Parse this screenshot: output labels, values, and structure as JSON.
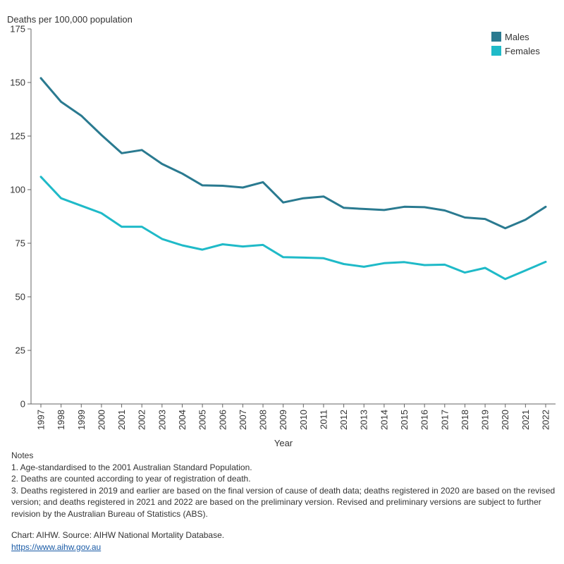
{
  "chart_data": {
    "type": "line",
    "ylabel": "Deaths per 100,000 population",
    "xlabel": "Year",
    "ylim": [
      0,
      175
    ],
    "yticks": [
      0,
      25,
      50,
      75,
      100,
      125,
      150,
      175
    ],
    "grid": false,
    "legend_position": "top-right",
    "x": [
      "1997",
      "1998",
      "1999",
      "2000",
      "2001",
      "2002",
      "2003",
      "2004",
      "2005",
      "2006",
      "2007",
      "2008",
      "2009",
      "2010",
      "2011",
      "2012",
      "2013",
      "2014",
      "2015",
      "2016",
      "2017",
      "2018",
      "2019",
      "2020",
      "2021",
      "2022"
    ],
    "series": [
      {
        "name": "Males",
        "color": "#2a7a90",
        "values": [
          152,
          141,
          134.5,
          125.5,
          117,
          118.5,
          112,
          107.5,
          102,
          101.8,
          101,
          103.5,
          94,
          96,
          96.8,
          91.5,
          91,
          90.5,
          92,
          91.8,
          90.3,
          87,
          86.3,
          82,
          86,
          92
        ]
      },
      {
        "name": "Females",
        "color": "#1fbac8",
        "values": [
          106,
          96,
          92.5,
          89,
          82.7,
          82.7,
          77,
          74,
          72,
          74.5,
          73.5,
          74.2,
          68.5,
          68.3,
          68,
          65.3,
          64,
          65.7,
          66.2,
          64.8,
          65,
          61.3,
          63.5,
          58.3,
          62.3,
          66.3
        ]
      }
    ]
  },
  "notes": {
    "heading": "Notes",
    "items": [
      "1. Age-standardised to the 2001 Australian Standard Population.",
      "2. Deaths are counted according to year of registration of death.",
      "3. Deaths registered in 2019 and earlier are based on the final version of cause of death data; deaths registered in 2020 are based on the revised version; and deaths registered in 2021 and 2022 are based on the preliminary version. Revised and preliminary versions are subject to further revision by the Australian Bureau of Statistics (ABS)."
    ],
    "source": "Chart: AIHW. Source: AIHW National Mortality Database.",
    "link": "https://www.aihw.gov.au"
  }
}
